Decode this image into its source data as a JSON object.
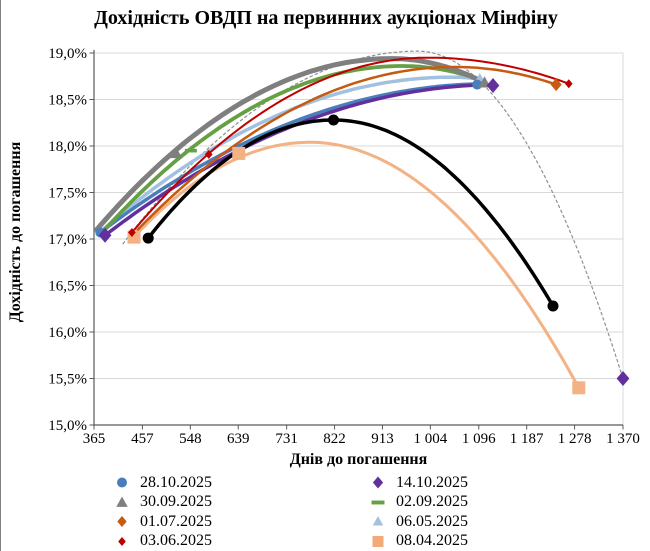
{
  "title": "Дохідність ОВДП на первинних аукціонах Мінфіну",
  "axes": {
    "x_label": "Днів до погашення",
    "y_label": "Дохідність до погашення",
    "x_ticks_days": [
      365,
      457,
      548,
      639,
      731,
      822,
      913,
      1004,
      1096,
      1187,
      1278,
      1370
    ],
    "x_tick_labels": [
      "365",
      "457",
      "548",
      "639",
      "731",
      "822",
      "913",
      "1 004",
      "1 096",
      "1 187",
      "1 278",
      "1 370"
    ],
    "y_ticks": [
      19.0,
      18.5,
      18.0,
      17.5,
      17.0,
      16.5,
      16.0,
      15.5,
      15.0
    ],
    "y_tick_labels": [
      "19,0%",
      "18,5%",
      "18,0%",
      "17,5%",
      "17,0%",
      "16,5%",
      "16,0%",
      "15,5%",
      "15,0%"
    ]
  },
  "chart_data": {
    "type": "line",
    "title": "Дохідність ОВДП на первинних аукціонах Мінфіну",
    "xlabel": "Днів до погашення",
    "ylabel": "Дохідність до погашення",
    "xlim": [
      365,
      1370
    ],
    "ylim": [
      15.0,
      19.0
    ],
    "grid": "horizontal",
    "legend_position": "bottom-two-columns",
    "series": [
      {
        "name": "fit-14-10-dashed",
        "legend_label": null,
        "color": "#909090",
        "width": 1.2,
        "dash": "2.5 3",
        "marker": "none",
        "msize": 0,
        "marker_z": 0,
        "curve": {
          "start": [
            420,
            16.95
          ],
          "vertex": [
            980,
            19.02
          ],
          "end": [
            1370,
            15.5
          ]
        },
        "points": []
      },
      {
        "name": "08-04-2025",
        "legend_label": "08.04.2025",
        "color": "#f4b183",
        "width": 3,
        "dash": null,
        "marker": "square",
        "msize": 6.5,
        "marker_z": 0,
        "curve": {
          "start": [
            441,
            17.02
          ],
          "vertex": [
            775,
            18.04
          ],
          "end": [
            1286,
            15.4
          ]
        },
        "points": [
          [
            441,
            17.02
          ],
          [
            640,
            17.92
          ],
          [
            1286,
            15.4
          ]
        ]
      },
      {
        "name": "06-05-2025",
        "legend_label": "06.05.2025",
        "color": "#a2c0e0",
        "width": 3.5,
        "dash": null,
        "marker": "triangle",
        "msize": 6,
        "marker_z": 0,
        "curve": {
          "start": [
            382,
            17.1
          ],
          "vertex": [
            1045,
            18.74
          ],
          "end": [
            1098,
            18.72
          ]
        },
        "points": [
          [
            1098,
            18.72
          ]
        ]
      },
      {
        "name": "28-10-2025",
        "legend_label": "28.10.2025",
        "color": "#4a7ebb",
        "width": 3.5,
        "dash": null,
        "marker": "circle",
        "msize": 5,
        "marker_z": 0,
        "curve": {
          "start": [
            377,
            17.07
          ],
          "vertex": [
            1120,
            18.67
          ],
          "end": [
            1093,
            18.66
          ]
        },
        "points": [
          [
            377,
            17.07
          ],
          [
            1093,
            18.66
          ]
        ]
      },
      {
        "name": "14-10-2025",
        "legend_label": "14.10.2025",
        "color": "#62309d",
        "width": 3.5,
        "dash": null,
        "marker": "diamond",
        "msize": 7.5,
        "marker_z": 1,
        "curve": {
          "start": [
            386,
            17.04
          ],
          "vertex": [
            1135,
            18.66
          ],
          "end": [
            1123,
            18.65
          ]
        },
        "points": [
          [
            386,
            17.04
          ],
          [
            1123,
            18.65
          ],
          [
            1370,
            15.5
          ]
        ]
      },
      {
        "name": "02-09-2025",
        "legend_label": "02.09.2025",
        "color": "#65a044",
        "width": 3.8,
        "dash": null,
        "marker": "dash",
        "msize": 6,
        "marker_z": 0,
        "curve": {
          "start": [
            376,
            17.04
          ],
          "vertex": [
            950,
            18.86
          ],
          "end": [
            1106,
            18.7
          ]
        },
        "points": [
          [
            549,
            17.95
          ]
        ]
      },
      {
        "name": "30-09-2025",
        "legend_label": "30.09.2025",
        "color": "#7f7f7f",
        "width": 5,
        "dash": null,
        "marker": "triangle",
        "msize": 6.5,
        "marker_z": 0,
        "curve": {
          "start": [
            370,
            17.1
          ],
          "vertex": [
            930,
            18.94
          ],
          "end": [
            1107,
            18.68
          ]
        },
        "points": [
          [
            521,
            17.92
          ],
          [
            1107,
            18.68
          ]
        ]
      },
      {
        "name": "01-07-2025",
        "legend_label": "01.07.2025",
        "color": "#c55a11",
        "width": 2.5,
        "dash": null,
        "marker": "diamond",
        "msize": 6.5,
        "marker_z": 0,
        "curve": {
          "start": [
            448,
            17.1
          ],
          "vertex": [
            1050,
            18.85
          ],
          "end": [
            1243,
            18.66
          ]
        },
        "points": [
          [
            1243,
            18.66
          ]
        ]
      },
      {
        "name": "03-06-2025",
        "legend_label": "03.06.2025",
        "color": "#c00000",
        "width": 2,
        "dash": null,
        "marker": "diamond",
        "msize": 4.5,
        "marker_z": 0,
        "curve": {
          "start": [
            437,
            17.07
          ],
          "vertex": [
            1000,
            18.95
          ],
          "end": [
            1267,
            18.67
          ]
        },
        "points": [
          [
            437,
            17.07
          ],
          [
            583,
            17.91
          ],
          [
            1267,
            18.67
          ]
        ]
      },
      {
        "name": "current-black",
        "legend_label": null,
        "color": "#000000",
        "width": 3.5,
        "dash": null,
        "marker": "circle",
        "msize": 5.5,
        "marker_z": 2,
        "curve": {
          "start": [
            468,
            17.01
          ],
          "vertex": [
            820,
            18.28
          ],
          "end": [
            1237,
            16.28
          ]
        },
        "points": [
          [
            468,
            17.01
          ],
          [
            820,
            18.28
          ],
          [
            1237,
            16.28
          ]
        ]
      }
    ]
  },
  "legend": {
    "columns": [
      {
        "items": [
          {
            "label": "28.10.2025",
            "marker": "circle",
            "color": "#4a7ebb",
            "msize": 5
          },
          {
            "label": "30.09.2025",
            "marker": "triangle",
            "color": "#7f7f7f",
            "msize": 6
          },
          {
            "label": "01.07.2025",
            "marker": "diamond",
            "color": "#c55a11",
            "msize": 5.5
          },
          {
            "label": "03.06.2025",
            "marker": "diamond",
            "color": "#c00000",
            "msize": 4.5
          }
        ]
      },
      {
        "items": [
          {
            "label": "14.10.2025",
            "marker": "diamond",
            "color": "#62309d",
            "msize": 6
          },
          {
            "label": "02.09.2025",
            "marker": "dash",
            "color": "#65a044",
            "msize": 6.5
          },
          {
            "label": "06.05.2025",
            "marker": "triangle",
            "color": "#a2c0e0",
            "msize": 5.5
          },
          {
            "label": "08.04.2025",
            "marker": "square",
            "color": "#f4a978",
            "msize": 5.5
          }
        ]
      }
    ]
  },
  "colors": {
    "grid": "#d9d9d9",
    "axis": "#595959",
    "text": "#000000",
    "background": "#ffffff"
  }
}
